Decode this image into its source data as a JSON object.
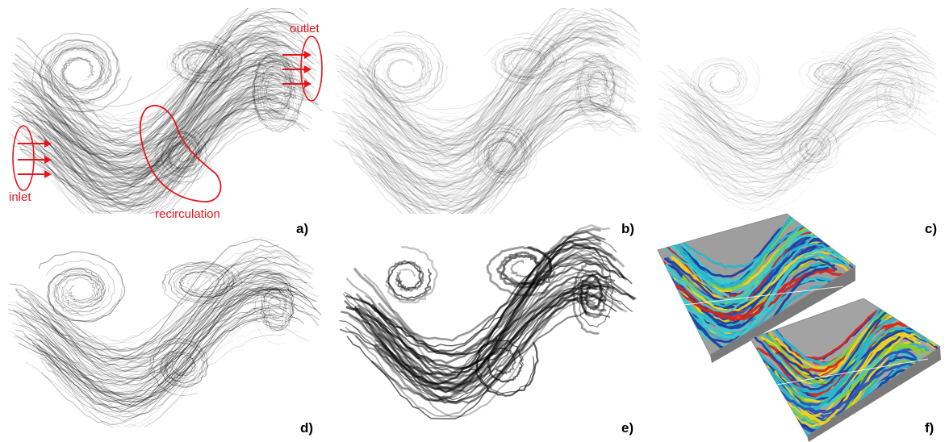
{
  "panels": [
    {
      "id": "a",
      "label": "a)"
    },
    {
      "id": "b",
      "label": "b)"
    },
    {
      "id": "c",
      "label": "c)"
    },
    {
      "id": "d",
      "label": "d)"
    },
    {
      "id": "e",
      "label": "e)"
    },
    {
      "id": "f",
      "label": "f)"
    }
  ],
  "annotations": {
    "inlet": "inlet",
    "outlet": "outlet",
    "recirculation": "recirculation"
  },
  "colors": {
    "annotation": "#e8141b",
    "streamline": "#000000",
    "box_face": "#9a9a9a",
    "tube_blue": "#1f3fa0",
    "tube_cyan": "#27b6cf",
    "tube_green": "#8ccf2a",
    "tube_yellow": "#f2d21a",
    "tube_red": "#d8261c"
  }
}
